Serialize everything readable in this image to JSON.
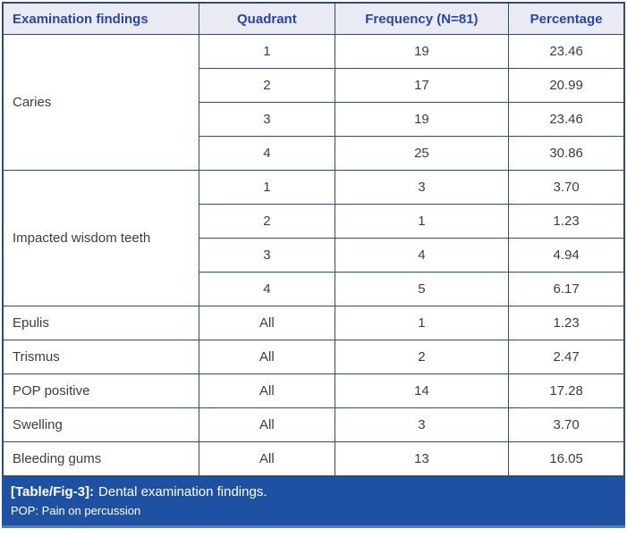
{
  "colors": {
    "border": "#2e4d73",
    "header_bg": "#e9eaf4",
    "header_text": "#2846a2",
    "body_text": "#3d3d3d",
    "caption_bg": "#1f51a3",
    "caption_text": "#ffffff",
    "accent_line": "#4d7dc5"
  },
  "table": {
    "headers": [
      "Examination findings",
      "Quadrant",
      "Frequency (N=81)",
      "Percentage"
    ],
    "groups": [
      {
        "finding": "Caries",
        "rows": [
          {
            "quadrant": "1",
            "frequency": "19",
            "percentage": "23.46"
          },
          {
            "quadrant": "2",
            "frequency": "17",
            "percentage": "20.99"
          },
          {
            "quadrant": "3",
            "frequency": "19",
            "percentage": "23.46"
          },
          {
            "quadrant": "4",
            "frequency": "25",
            "percentage": "30.86"
          }
        ]
      },
      {
        "finding": "Impacted wisdom teeth",
        "rows": [
          {
            "quadrant": "1",
            "frequency": "3",
            "percentage": "3.70"
          },
          {
            "quadrant": "2",
            "frequency": "1",
            "percentage": "1.23"
          },
          {
            "quadrant": "3",
            "frequency": "4",
            "percentage": "4.94"
          },
          {
            "quadrant": "4",
            "frequency": "5",
            "percentage": "6.17"
          }
        ]
      },
      {
        "finding": "Epulis",
        "rows": [
          {
            "quadrant": "All",
            "frequency": "1",
            "percentage": "1.23"
          }
        ]
      },
      {
        "finding": "Trismus",
        "rows": [
          {
            "quadrant": "All",
            "frequency": "2",
            "percentage": "2.47"
          }
        ]
      },
      {
        "finding": "POP positive",
        "rows": [
          {
            "quadrant": "All",
            "frequency": "14",
            "percentage": "17.28"
          }
        ]
      },
      {
        "finding": "Swelling",
        "rows": [
          {
            "quadrant": "All",
            "frequency": "3",
            "percentage": "3.70"
          }
        ]
      },
      {
        "finding": "Bleeding gums",
        "rows": [
          {
            "quadrant": "All",
            "frequency": "13",
            "percentage": "16.05"
          }
        ]
      }
    ]
  },
  "caption": {
    "label": "[Table/Fig-3]:",
    "title": "Dental examination findings.",
    "footnote": "POP: Pain on percussion"
  },
  "chart_data": {
    "type": "table",
    "title": "[Table/Fig-3]: Dental examination findings.",
    "columns": [
      "Examination findings",
      "Quadrant",
      "Frequency (N=81)",
      "Percentage"
    ],
    "rows": [
      [
        "Caries",
        "1",
        19,
        23.46
      ],
      [
        "Caries",
        "2",
        17,
        20.99
      ],
      [
        "Caries",
        "3",
        19,
        23.46
      ],
      [
        "Caries",
        "4",
        25,
        30.86
      ],
      [
        "Impacted wisdom teeth",
        "1",
        3,
        3.7
      ],
      [
        "Impacted wisdom teeth",
        "2",
        1,
        1.23
      ],
      [
        "Impacted wisdom teeth",
        "3",
        4,
        4.94
      ],
      [
        "Impacted wisdom teeth",
        "4",
        5,
        6.17
      ],
      [
        "Epulis",
        "All",
        1,
        1.23
      ],
      [
        "Trismus",
        "All",
        2,
        2.47
      ],
      [
        "POP positive",
        "All",
        14,
        17.28
      ],
      [
        "Swelling",
        "All",
        3,
        3.7
      ],
      [
        "Bleeding gums",
        "All",
        13,
        16.05
      ]
    ],
    "footnote": "POP: Pain on percussion"
  }
}
